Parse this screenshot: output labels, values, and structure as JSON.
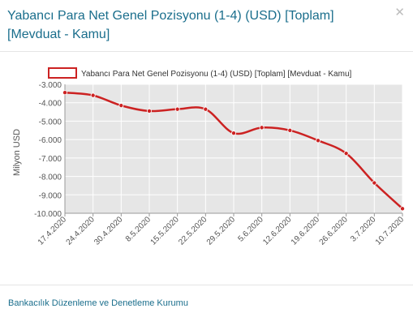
{
  "dialog": {
    "title": "Yabancı Para Net Genel Pozisyonu (1-4) (USD) [Toplam] [Mevduat - Kamu]",
    "close_icon": "close-icon",
    "source": "Bankacılık Düzenleme ve Denetleme Kurumu"
  },
  "colors": {
    "title": "#1a6e8c",
    "line": "#cc2222",
    "plot_bg": "#e6e6e6"
  },
  "chart_data": {
    "type": "line",
    "title": "",
    "ylabel": "Milyon USD",
    "xlabel": "",
    "ylim": [
      -10000,
      -3000
    ],
    "yticks": [
      -3000,
      -4000,
      -5000,
      -6000,
      -7000,
      -8000,
      -9000,
      -10000
    ],
    "ytick_labels": [
      "-3.000",
      "-4.000",
      "-5.000",
      "-6.000",
      "-7.000",
      "-8.000",
      "-9.000",
      "-10.000"
    ],
    "categories": [
      "17.4.2020",
      "24.4.2020",
      "30.4.2020",
      "8.5.2020",
      "15.5.2020",
      "22.5.2020",
      "29.5.2020",
      "5.6.2020",
      "12.6.2020",
      "19.6.2020",
      "26.6.2020",
      "3.7.2020",
      "10.7.2020"
    ],
    "legend": "top-center",
    "grid": true,
    "series": [
      {
        "name": "Yabancı Para Net Genel Pozisyonu (1-4) (USD) [Toplam] [Mevduat - Kamu]",
        "values": [
          -3450,
          -3600,
          -4150,
          -4450,
          -4350,
          -4350,
          -5650,
          -5350,
          -5500,
          -6050,
          -6750,
          -8350,
          -9750
        ]
      }
    ]
  }
}
